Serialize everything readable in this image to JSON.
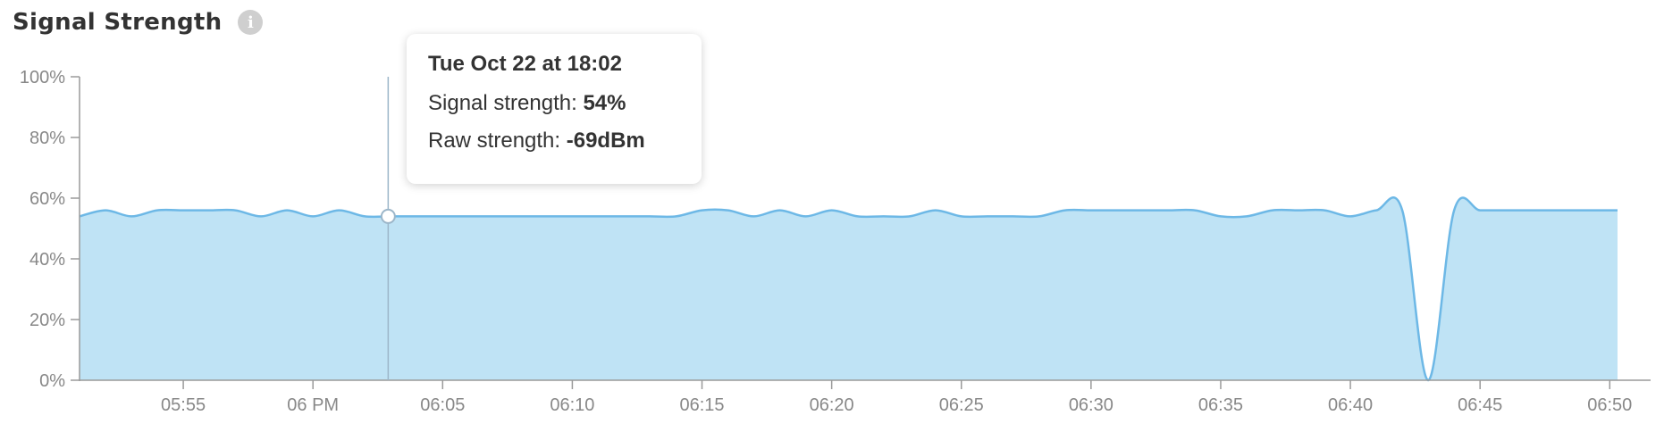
{
  "header": {
    "title": "Signal Strength",
    "info_icon": "info-icon"
  },
  "colors": {
    "line": "#6db8e6",
    "fill": "#bfe3f5",
    "axis": "#9a9a9a",
    "cursor": "#9cb6c9"
  },
  "tooltip": {
    "date": "Tue Oct 22 at 18:02",
    "signal_label": "Signal strength: ",
    "signal_value": "54%",
    "raw_label": "Raw strength: ",
    "raw_value": "-69dBm"
  },
  "chart_data": {
    "type": "area",
    "title": "Signal Strength",
    "ylim": [
      0,
      100
    ],
    "yticks": [
      "0%",
      "20%",
      "40%",
      "60%",
      "80%",
      "100%"
    ],
    "xlim_minutes": [
      -9,
      50.3
    ],
    "xticks": [
      {
        "minute": -5,
        "label": "05:55"
      },
      {
        "minute": 0,
        "label": "06 PM"
      },
      {
        "minute": 5,
        "label": "06:05"
      },
      {
        "minute": 10,
        "label": "06:10"
      },
      {
        "minute": 15,
        "label": "06:15"
      },
      {
        "minute": 20,
        "label": "06:20"
      },
      {
        "minute": 25,
        "label": "06:25"
      },
      {
        "minute": 30,
        "label": "06:30"
      },
      {
        "minute": 35,
        "label": "06:35"
      },
      {
        "minute": 40,
        "label": "06:40"
      },
      {
        "minute": 45,
        "label": "06:45"
      },
      {
        "minute": 50,
        "label": "06:50"
      }
    ],
    "cursor_minute": 2.9,
    "series": [
      {
        "values": [
          [
            -9,
            54
          ],
          [
            -8,
            56
          ],
          [
            -7,
            54
          ],
          [
            -6,
            56
          ],
          [
            -5,
            56
          ],
          [
            -4,
            56
          ],
          [
            -3,
            56
          ],
          [
            -2,
            54
          ],
          [
            -1,
            56
          ],
          [
            0,
            54
          ],
          [
            1,
            56
          ],
          [
            2,
            54
          ],
          [
            3,
            54
          ],
          [
            4,
            54
          ],
          [
            5,
            54
          ],
          [
            6,
            54
          ],
          [
            7,
            54
          ],
          [
            8,
            54
          ],
          [
            9,
            54
          ],
          [
            10,
            54
          ],
          [
            11,
            54
          ],
          [
            12,
            54
          ],
          [
            13,
            54
          ],
          [
            14,
            54
          ],
          [
            15,
            56
          ],
          [
            16,
            56
          ],
          [
            17,
            54
          ],
          [
            18,
            56
          ],
          [
            19,
            54
          ],
          [
            20,
            56
          ],
          [
            21,
            54
          ],
          [
            22,
            54
          ],
          [
            23,
            54
          ],
          [
            24,
            56
          ],
          [
            25,
            54
          ],
          [
            26,
            54
          ],
          [
            27,
            54
          ],
          [
            28,
            54
          ],
          [
            29,
            56
          ],
          [
            30,
            56
          ],
          [
            31,
            56
          ],
          [
            32,
            56
          ],
          [
            33,
            56
          ],
          [
            34,
            56
          ],
          [
            35,
            54
          ],
          [
            36,
            54
          ],
          [
            37,
            56
          ],
          [
            38,
            56
          ],
          [
            39,
            56
          ],
          [
            40,
            54
          ],
          [
            41,
            56
          ],
          [
            42,
            56
          ],
          [
            43,
            0
          ],
          [
            44,
            56
          ],
          [
            45,
            56
          ],
          [
            46,
            56
          ],
          [
            47,
            56
          ],
          [
            48,
            56
          ],
          [
            49,
            56
          ],
          [
            50,
            56
          ],
          [
            50.3,
            56
          ]
        ]
      }
    ]
  }
}
